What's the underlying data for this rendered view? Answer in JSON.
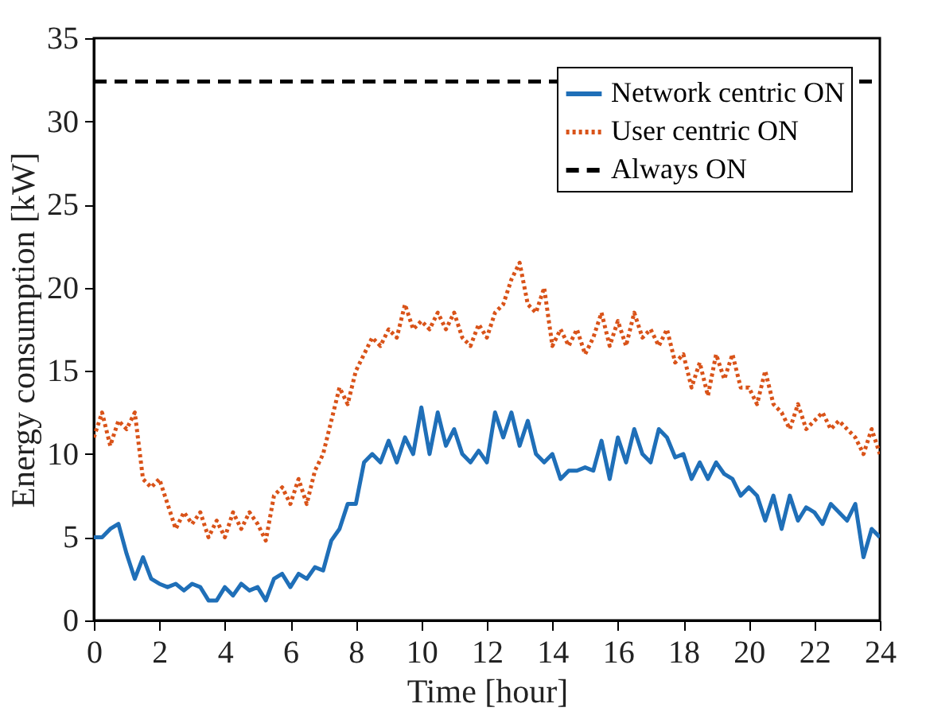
{
  "chart_data": {
    "type": "line",
    "xlabel": "Time [hour]",
    "ylabel": "Energy consumption [kW]",
    "x": [
      0,
      0.25,
      0.5,
      0.75,
      1,
      1.25,
      1.5,
      1.75,
      2,
      2.25,
      2.5,
      2.75,
      3,
      3.25,
      3.5,
      3.75,
      4,
      4.25,
      4.5,
      4.75,
      5,
      5.25,
      5.5,
      5.75,
      6,
      6.25,
      6.5,
      6.75,
      7,
      7.25,
      7.5,
      7.75,
      8,
      8.25,
      8.5,
      8.75,
      9,
      9.25,
      9.5,
      9.75,
      10,
      10.25,
      10.5,
      10.75,
      11,
      11.25,
      11.5,
      11.75,
      12,
      12.25,
      12.5,
      12.75,
      13,
      13.25,
      13.5,
      13.75,
      14,
      14.25,
      14.5,
      14.75,
      15,
      15.25,
      15.5,
      15.75,
      16,
      16.25,
      16.5,
      16.75,
      17,
      17.25,
      17.5,
      17.75,
      18,
      18.25,
      18.5,
      18.75,
      19,
      19.25,
      19.5,
      19.75,
      20,
      20.25,
      20.5,
      20.75,
      21,
      21.25,
      21.5,
      21.75,
      22,
      22.25,
      22.5,
      22.75,
      23,
      23.25,
      23.5,
      23.75,
      24
    ],
    "series": [
      {
        "name": "Network centric ON",
        "color": "#1f6fb8",
        "line_style": "solid",
        "values": [
          5,
          5,
          5.5,
          5.8,
          4,
          2.5,
          3.8,
          2.5,
          2.2,
          2,
          2.2,
          1.8,
          2.2,
          2,
          1.2,
          1.2,
          2,
          1.5,
          2.2,
          1.8,
          2,
          1.2,
          2.5,
          2.8,
          2,
          2.8,
          2.5,
          3.2,
          3,
          4.8,
          5.5,
          7,
          7,
          9.5,
          10,
          9.5,
          10.8,
          9.5,
          11,
          10,
          12.8,
          10,
          12.5,
          10.5,
          11.5,
          10,
          9.5,
          10.2,
          9.5,
          12.5,
          11,
          12.5,
          10.5,
          12,
          10,
          9.5,
          10,
          8.5,
          9,
          9,
          9.2,
          9,
          10.8,
          8.5,
          11,
          9.5,
          11.5,
          10,
          9.5,
          11.5,
          11,
          9.8,
          10,
          8.5,
          9.5,
          8.5,
          9.5,
          8.8,
          8.5,
          7.5,
          8,
          7.5,
          6,
          7.5,
          5.5,
          7.5,
          6,
          6.8,
          6.5,
          5.8,
          7,
          6.5,
          6,
          7,
          3.8,
          5.5,
          5
        ]
      },
      {
        "name": "User centric ON",
        "color": "#d95319",
        "line_style": "dotted",
        "values": [
          11,
          12.5,
          10.5,
          12,
          11.5,
          12.5,
          8.5,
          8,
          8.5,
          7,
          5.5,
          6.5,
          5.8,
          6.5,
          5,
          6,
          5,
          6.5,
          5.5,
          6.5,
          5.8,
          4.8,
          7.5,
          8,
          7,
          8.5,
          7,
          9,
          10,
          12,
          14,
          13,
          15,
          16,
          17,
          16.5,
          17.5,
          17,
          19,
          17.5,
          18,
          17.5,
          18.5,
          17.5,
          18.5,
          17,
          16.5,
          17.8,
          17,
          18.5,
          19,
          20.5,
          21.5,
          19,
          18.5,
          20,
          16.5,
          17.5,
          16.5,
          17.5,
          16,
          17,
          18.5,
          16.5,
          18,
          16.5,
          18.5,
          17,
          17.5,
          16.5,
          17.5,
          15.5,
          16,
          14,
          15.5,
          13.5,
          16,
          14.5,
          16,
          14,
          14,
          13,
          15,
          13,
          12.5,
          11.5,
          13,
          11.5,
          12,
          12.5,
          11.5,
          12,
          11.5,
          11,
          10,
          11.5,
          10
        ]
      },
      {
        "name": "Always ON",
        "color": "#000000",
        "line_style": "dashed",
        "x": [
          0,
          24
        ],
        "values": [
          32.4,
          32.4
        ]
      }
    ],
    "xlim": [
      0,
      24
    ],
    "xticks": [
      0,
      2,
      4,
      6,
      8,
      10,
      12,
      14,
      16,
      18,
      20,
      22,
      24
    ],
    "ylim": [
      0,
      35
    ],
    "yticks": [
      0,
      5,
      10,
      15,
      20,
      25,
      30,
      35
    ],
    "grid": false,
    "legend": "top right",
    "marker": "none"
  }
}
